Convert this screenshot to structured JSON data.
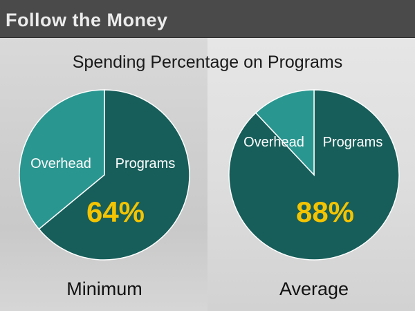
{
  "header": {
    "title": "Follow the Money"
  },
  "chart_data": {
    "type": "pie",
    "title": "Spending Percentage on Programs",
    "colors": {
      "programs": "#175e5a",
      "overhead": "#2a9690",
      "value_text": "#f5c400"
    },
    "pies": [
      {
        "caption": "Minimum",
        "value_label": "64%",
        "slices": [
          {
            "label": "Programs",
            "value": 64
          },
          {
            "label": "Overhead",
            "value": 36
          }
        ]
      },
      {
        "caption": "Average",
        "value_label": "88%",
        "slices": [
          {
            "label": "Programs",
            "value": 88
          },
          {
            "label": "Overhead",
            "value": 12
          }
        ]
      }
    ]
  }
}
